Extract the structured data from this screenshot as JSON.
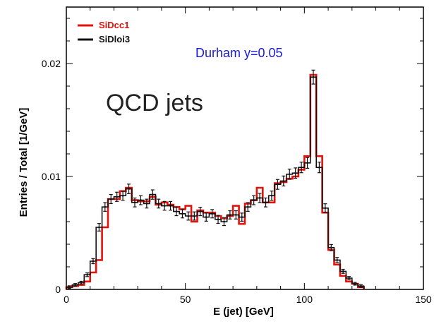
{
  "chart_data": {
    "type": "histogram-step",
    "xlabel": "E (jet) [GeV]",
    "ylabel": "Entries / Total  [1/GeV]",
    "xlim": [
      0,
      150
    ],
    "ylim": [
      0,
      0.025
    ],
    "xticks": [
      0,
      50,
      100,
      150
    ],
    "yticks": [
      0,
      0.01,
      0.02
    ],
    "xtick_labels": [
      "0",
      "50",
      "100",
      "150"
    ],
    "ytick_labels": [
      "0",
      "0.01",
      "0.02"
    ],
    "bin_width": 2.5,
    "annotations": [
      {
        "id": "durham",
        "text": "Durham y=0.05",
        "color": "#1a1adb"
      },
      {
        "id": "qcd",
        "text": "QCD jets",
        "color": "#222222"
      }
    ],
    "legend": {
      "placement": "top-left"
    },
    "series": [
      {
        "name": "SiDcc1",
        "color": "#e3120b",
        "values": [
          0.0002,
          0.0003,
          0.0004,
          0.0007,
          0.0015,
          0.0026,
          0.0055,
          0.008,
          0.008,
          0.0087,
          0.009,
          0.0079,
          0.0078,
          0.0078,
          0.0082,
          0.0075,
          0.0077,
          0.0075,
          0.0073,
          0.0071,
          0.0074,
          0.006,
          0.007,
          0.0068,
          0.0068,
          0.0065,
          0.0063,
          0.0065,
          0.0074,
          0.0058,
          0.0076,
          0.0079,
          0.009,
          0.0077,
          0.0077,
          0.0094,
          0.0095,
          0.0098,
          0.01,
          0.0106,
          0.0118,
          0.019,
          0.0118,
          0.0068,
          0.0035,
          0.0022,
          0.0012,
          0.0007,
          0.0005,
          0.0002
        ]
      },
      {
        "name": "SiDloi3",
        "color": "#111111",
        "values": [
          0.0002,
          0.0004,
          0.0006,
          0.0013,
          0.0025,
          0.0055,
          0.0073,
          0.008,
          0.0082,
          0.0083,
          0.0089,
          0.0077,
          0.0079,
          0.0076,
          0.0084,
          0.0076,
          0.0074,
          0.0074,
          0.0069,
          0.0067,
          0.0065,
          0.0065,
          0.0069,
          0.0064,
          0.0067,
          0.0062,
          0.006,
          0.0066,
          0.0066,
          0.0064,
          0.0073,
          0.0079,
          0.0081,
          0.0077,
          0.0083,
          0.0093,
          0.0096,
          0.0102,
          0.0103,
          0.0108,
          0.0112,
          0.0188,
          0.0108,
          0.0072,
          0.0037,
          0.0026,
          0.0016,
          0.001,
          0.0005,
          0.0003
        ]
      }
    ]
  }
}
